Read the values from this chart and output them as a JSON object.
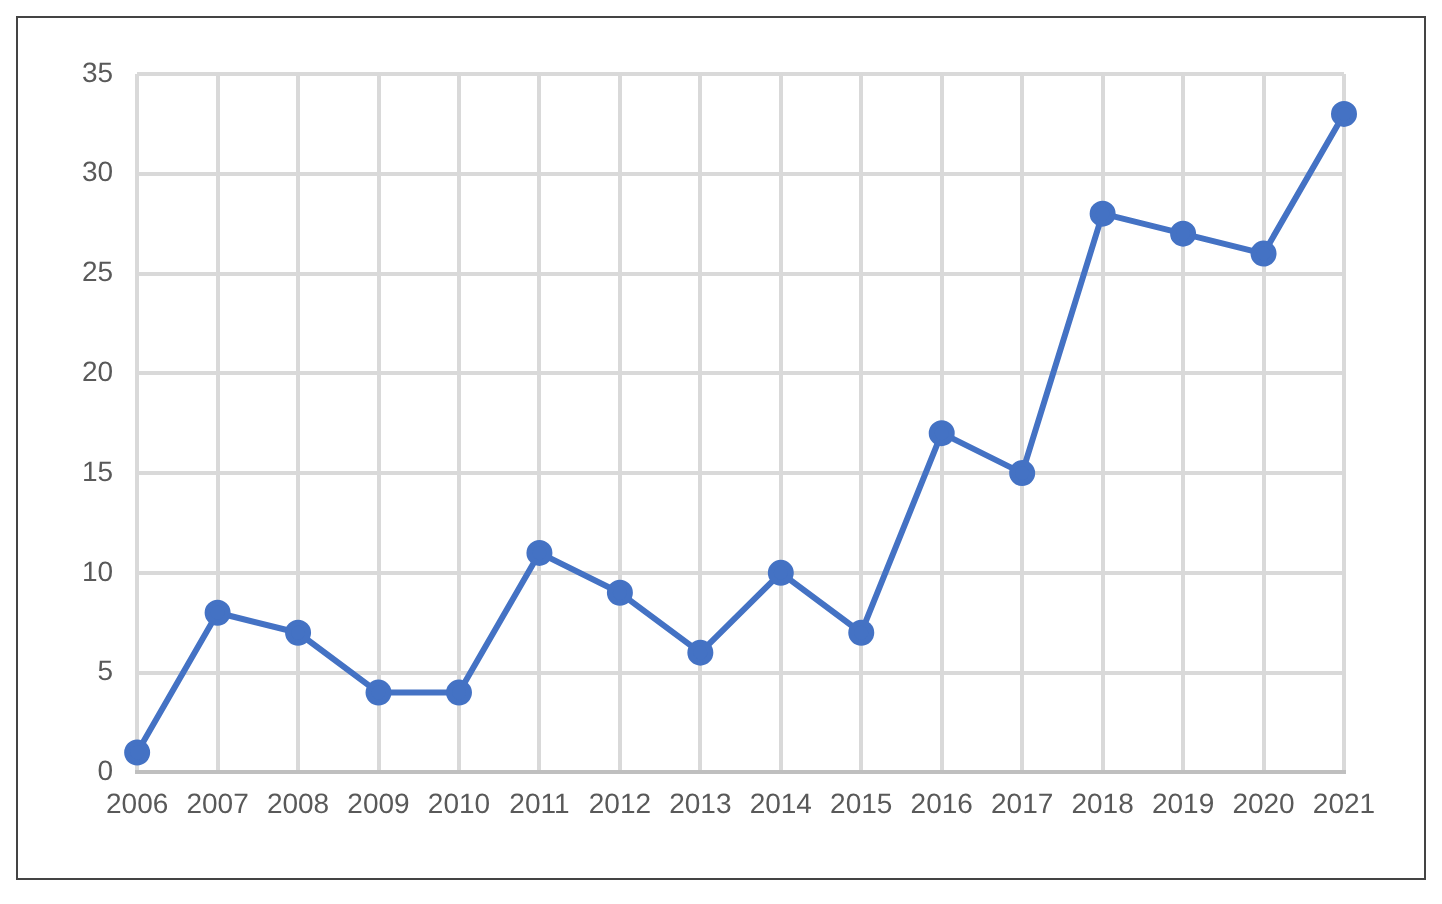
{
  "chart_data": {
    "type": "line",
    "categories": [
      "2006",
      "2007",
      "2008",
      "2009",
      "2010",
      "2011",
      "2012",
      "2013",
      "2014",
      "2015",
      "2016",
      "2017",
      "2018",
      "2019",
      "2020",
      "2021"
    ],
    "series": [
      {
        "color": "#4472c4",
        "values": [
          1,
          8,
          7,
          4,
          4,
          11,
          9,
          6,
          10,
          7,
          17,
          15,
          28,
          27,
          26,
          33
        ]
      }
    ],
    "ylim": [
      0,
      35
    ],
    "yticks": [
      0,
      5,
      10,
      15,
      20,
      25,
      30,
      35
    ],
    "grid": true,
    "legend": false,
    "marker": "circle",
    "line_style": "solid"
  }
}
